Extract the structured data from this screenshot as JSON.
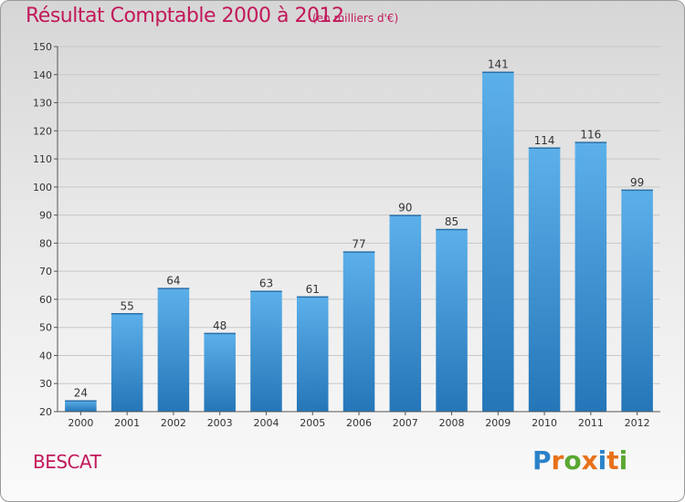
{
  "chart_data": {
    "type": "bar",
    "title": "Résultat Comptable 2000 à 2012",
    "subtitle": "(en milliers d'€)",
    "categories": [
      "2000",
      "2001",
      "2002",
      "2003",
      "2004",
      "2005",
      "2006",
      "2007",
      "2008",
      "2009",
      "2010",
      "2011",
      "2012"
    ],
    "values": [
      24,
      55,
      64,
      48,
      63,
      61,
      77,
      90,
      85,
      141,
      114,
      116,
      99
    ],
    "ylim": [
      20,
      150
    ],
    "yticks": [
      20,
      30,
      40,
      50,
      60,
      70,
      80,
      90,
      100,
      110,
      120,
      130,
      140,
      150
    ],
    "xlabel": "",
    "ylabel": "",
    "grid": true,
    "bar_color": "#3a8fd6"
  },
  "footer": {
    "commune": "BESCAT"
  },
  "logo": {
    "letters": [
      "P",
      "r",
      "o",
      "x",
      "i",
      "t",
      "i"
    ],
    "colors": [
      "#2b82c9",
      "#e8711a",
      "#5aa832",
      "#e8711a",
      "#2b82c9",
      "#e8711a",
      "#5aa832"
    ]
  }
}
